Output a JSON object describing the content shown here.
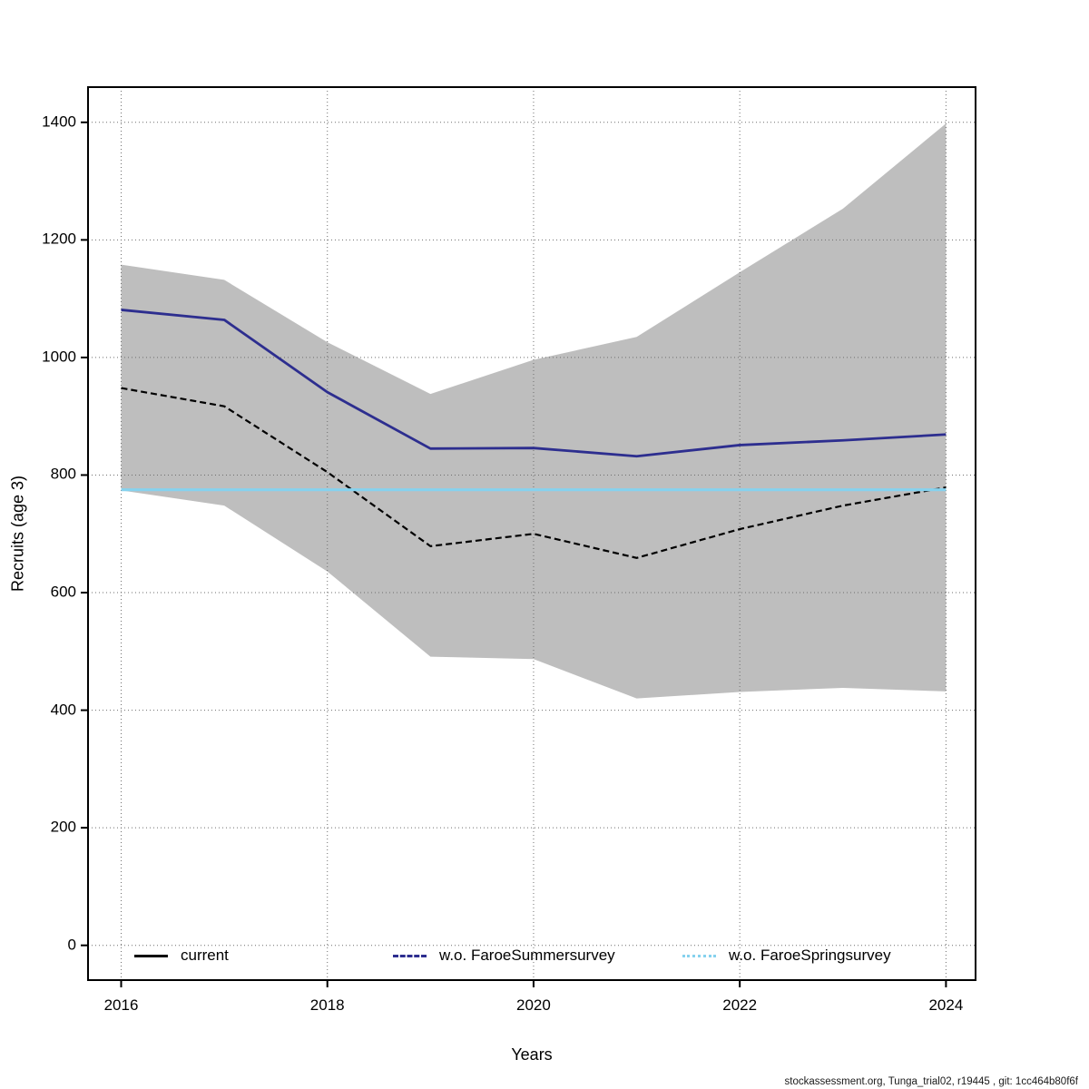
{
  "chart_data": {
    "type": "line",
    "title": "",
    "xlabel": "Years",
    "ylabel": "Recruits (age 3)",
    "x": [
      2016,
      2017,
      2018,
      2019,
      2020,
      2021,
      2022,
      2023,
      2024
    ],
    "x_ticks": [
      2016,
      2018,
      2020,
      2022,
      2024
    ],
    "y_ticks": [
      0,
      200,
      400,
      600,
      800,
      1000,
      1200,
      1400
    ],
    "ylim": [
      0,
      1400
    ],
    "grid": "dotted gridlines at labeled ticks, both axes",
    "legend_position": "bottom inside plot, horizontal row",
    "series": [
      {
        "name": "current",
        "color": "#000000",
        "plot_style": "dashed",
        "legend_style": "solid",
        "width": 2.2,
        "values": [
          948,
          917,
          805,
          679,
          700,
          659,
          708,
          748,
          779
        ]
      },
      {
        "name": "w.o. FaroeSummersurvey",
        "color": "#2d2e8f",
        "plot_style": "solid",
        "legend_style": "dashed",
        "width": 2.8,
        "values": [
          1081,
          1064,
          941,
          845,
          846,
          832,
          851,
          859,
          869
        ]
      },
      {
        "name": "w.o. FaroeSpringsurvey",
        "color": "#86d2ee",
        "plot_style": "solid",
        "legend_style": "dotted",
        "width": 3.2,
        "values": [
          775,
          775,
          775,
          775,
          775,
          775,
          775,
          775,
          775
        ]
      }
    ],
    "band": {
      "name": "confidence-band",
      "color": "#bebebe",
      "upper": [
        1158,
        1132,
        1026,
        938,
        996,
        1035,
        1145,
        1253,
        1398
      ],
      "lower": [
        774,
        748,
        636,
        491,
        487,
        420,
        431,
        438,
        432
      ]
    }
  },
  "footer": {
    "text": "stockassessment.org, Tunga_trial02, r19445 , git: 1cc464b80f6f"
  }
}
